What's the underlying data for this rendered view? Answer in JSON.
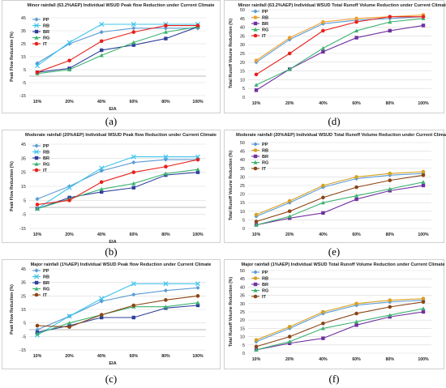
{
  "chart_data": [
    {
      "id": "a",
      "type": "line",
      "title": "Minor rainfall (63.2%AEP) Individual WSUD Peak flow Reduction under Current Climate",
      "xlabel": "EIA",
      "ylabel": "Peak Flow Reduction (%)",
      "categories": [
        "10%",
        "20%",
        "40%",
        "60%",
        "80%",
        "100%"
      ],
      "yticks": [
        "-15",
        "-5",
        "5",
        "15",
        "25",
        "35",
        "45"
      ],
      "ylim": [
        -15,
        45
      ],
      "legend": "top-left",
      "grid": true,
      "series": [
        {
          "name": "PP",
          "color": "#5b9bd5",
          "marker": "diamond",
          "values": [
            10,
            25,
            34,
            37,
            37,
            37
          ]
        },
        {
          "name": "RB",
          "color": "#40c4ea",
          "marker": "x",
          "values": [
            8,
            26,
            40,
            40,
            40,
            40
          ]
        },
        {
          "name": "BR",
          "color": "#2e3f9c",
          "marker": "square",
          "values": [
            3,
            6,
            20,
            24,
            29,
            38
          ]
        },
        {
          "name": "RG",
          "color": "#3cb371",
          "marker": "triangle",
          "values": [
            2,
            5,
            16,
            26,
            34,
            38
          ]
        },
        {
          "name": "IT",
          "color": "#e8201a",
          "marker": "circle",
          "values": [
            3,
            12,
            27,
            34,
            39,
            39
          ]
        }
      ],
      "caption": "(a)"
    },
    {
      "id": "d",
      "type": "line",
      "title": "Minor rainfall (63.2%AEP) Individual WSUD Total Runoff Volume Reduction under Current Climate",
      "xlabel": "",
      "ylabel": "Total Runoff Volume Reduction (%)",
      "categories": [
        "10%",
        "20%",
        "40%",
        "60%",
        "80%",
        "100%"
      ],
      "yticks": [
        "0",
        "5",
        "10",
        "15",
        "20",
        "25",
        "30",
        "35",
        "40",
        "45",
        "50"
      ],
      "ylim": [
        0,
        50
      ],
      "legend": "top-left",
      "grid": true,
      "series": [
        {
          "name": "PP",
          "color": "#5b9bd5",
          "marker": "diamond",
          "values": [
            20,
            33,
            42,
            44,
            45,
            46
          ]
        },
        {
          "name": "RB",
          "color": "#f0a030",
          "marker": "circle",
          "values": [
            21,
            34,
            43,
            45,
            46,
            47
          ]
        },
        {
          "name": "BR",
          "color": "#7030a0",
          "marker": "square",
          "values": [
            4,
            16,
            26,
            34,
            38,
            41
          ]
        },
        {
          "name": "RG",
          "color": "#3cb371",
          "marker": "triangle",
          "values": [
            7,
            16,
            28,
            38,
            43,
            45
          ]
        },
        {
          "name": "IT",
          "color": "#e8201a",
          "marker": "circle",
          "values": [
            13,
            25,
            38,
            43,
            46,
            46
          ]
        }
      ],
      "caption": "(d)"
    },
    {
      "id": "b",
      "type": "line",
      "title": "Moderate rainfall (20%AEP) Individual WSUD Peak flow Reduction under Current Climate",
      "xlabel": "EIA",
      "ylabel": "Peak Flow Reduction (%)",
      "categories": [
        "10%",
        "20%",
        "40%",
        "60%",
        "80%",
        "100%"
      ],
      "yticks": [
        "-15",
        "-5",
        "5",
        "15",
        "25",
        "35",
        "45"
      ],
      "ylim": [
        -15,
        45
      ],
      "legend": "top-left",
      "grid": true,
      "series": [
        {
          "name": "PP",
          "color": "#5b9bd5",
          "marker": "diamond",
          "values": [
            6,
            15,
            26,
            32,
            34,
            34
          ]
        },
        {
          "name": "RB",
          "color": "#40c4ea",
          "marker": "x",
          "values": [
            -1,
            14,
            28,
            36,
            36,
            36
          ]
        },
        {
          "name": "BR",
          "color": "#2e3f9c",
          "marker": "square",
          "values": [
            -1,
            7,
            11,
            14,
            23,
            25
          ]
        },
        {
          "name": "RG",
          "color": "#3cb371",
          "marker": "triangle",
          "values": [
            -1,
            6,
            13,
            17,
            24,
            27
          ]
        },
        {
          "name": "IT",
          "color": "#e8201a",
          "marker": "circle",
          "values": [
            2,
            5,
            18,
            25,
            29,
            34
          ]
        }
      ],
      "caption": "(b)"
    },
    {
      "id": "e",
      "type": "line",
      "title": "Moderate rainfall (20%AEP) Individual WSUD Total Runoff Volume Reduction under Current Climate",
      "xlabel": "",
      "ylabel": "Total Runoff Volume Reduction (%)",
      "categories": [
        "10%",
        "20%",
        "40%",
        "60%",
        "80%",
        "100%"
      ],
      "yticks": [
        "0",
        "5",
        "10",
        "15",
        "20",
        "25",
        "30",
        "35",
        "40",
        "45",
        "50"
      ],
      "ylim": [
        0,
        50
      ],
      "legend": "top-left",
      "grid": true,
      "series": [
        {
          "name": "PP",
          "color": "#5b9bd5",
          "marker": "diamond",
          "values": [
            7,
            15,
            24,
            29,
            31,
            32
          ]
        },
        {
          "name": "RB",
          "color": "#d8a020",
          "marker": "circle",
          "values": [
            8,
            16,
            25,
            30,
            32,
            33
          ]
        },
        {
          "name": "BR",
          "color": "#7030a0",
          "marker": "square",
          "values": [
            2,
            6,
            9,
            17,
            22,
            25
          ]
        },
        {
          "name": "RG",
          "color": "#3cb371",
          "marker": "triangle",
          "values": [
            2,
            7,
            15,
            19,
            23,
            27
          ]
        },
        {
          "name": "IT",
          "color": "#8b4513",
          "marker": "circle",
          "values": [
            4,
            10,
            18,
            24,
            28,
            31
          ]
        }
      ],
      "caption": "(e)"
    },
    {
      "id": "c",
      "type": "line",
      "title": "Major rainfall (1%AEP) Individual WSUD Peak flow Reduction under Current Climate",
      "xlabel": "EIA",
      "ylabel": "Peak Flow Reduction (%)",
      "categories": [
        "10%",
        "20%",
        "40%",
        "60%",
        "80%",
        "100%"
      ],
      "yticks": [
        "-15",
        "-5",
        "5",
        "15",
        "25",
        "35",
        "45"
      ],
      "ylim": [
        -15,
        45
      ],
      "legend": "top-left",
      "grid": true,
      "series": [
        {
          "name": "PP",
          "color": "#5b9bd5",
          "marker": "diamond",
          "values": [
            0,
            10,
            21,
            26,
            29,
            31
          ]
        },
        {
          "name": "RB",
          "color": "#40c4ea",
          "marker": "x",
          "values": [
            -4,
            10,
            23,
            34,
            34,
            34
          ]
        },
        {
          "name": "BR",
          "color": "#2e3f9c",
          "marker": "square",
          "values": [
            -2,
            3,
            9,
            9,
            16,
            18
          ]
        },
        {
          "name": "RG",
          "color": "#3cb371",
          "marker": "triangle",
          "values": [
            -3,
            5,
            11,
            17,
            17,
            20
          ]
        },
        {
          "name": "IT",
          "color": "#8b4513",
          "marker": "circle",
          "values": [
            3,
            2,
            11,
            18,
            22,
            25
          ]
        }
      ],
      "caption": "(c)"
    },
    {
      "id": "f",
      "type": "line",
      "title": "Major rainfall (1%AEP) Individual WSUD Total Runoff Volume Reduction under Current Climate",
      "xlabel": "",
      "ylabel": "Total Runoff Volume Reduction (%)",
      "categories": [
        "10%",
        "20%",
        "40%",
        "60%",
        "80%",
        "100%"
      ],
      "yticks": [
        "0",
        "5",
        "10",
        "15",
        "20",
        "25",
        "30",
        "35",
        "40",
        "45",
        "50"
      ],
      "ylim": [
        0,
        50
      ],
      "legend": "top-left",
      "grid": true,
      "series": [
        {
          "name": "PP",
          "color": "#5b9bd5",
          "marker": "diamond",
          "values": [
            7,
            15,
            24,
            29,
            31,
            32
          ]
        },
        {
          "name": "RB",
          "color": "#d8a020",
          "marker": "circle",
          "values": [
            8,
            16,
            25,
            30,
            32,
            33
          ]
        },
        {
          "name": "BR",
          "color": "#7030a0",
          "marker": "square",
          "values": [
            2,
            6,
            9,
            17,
            22,
            25
          ]
        },
        {
          "name": "RG",
          "color": "#3cb371",
          "marker": "triangle",
          "values": [
            2,
            7,
            15,
            19,
            23,
            27
          ]
        },
        {
          "name": "IT",
          "color": "#8b4513",
          "marker": "circle",
          "values": [
            4,
            10,
            18,
            24,
            28,
            31
          ]
        }
      ],
      "caption": "(f)"
    }
  ]
}
